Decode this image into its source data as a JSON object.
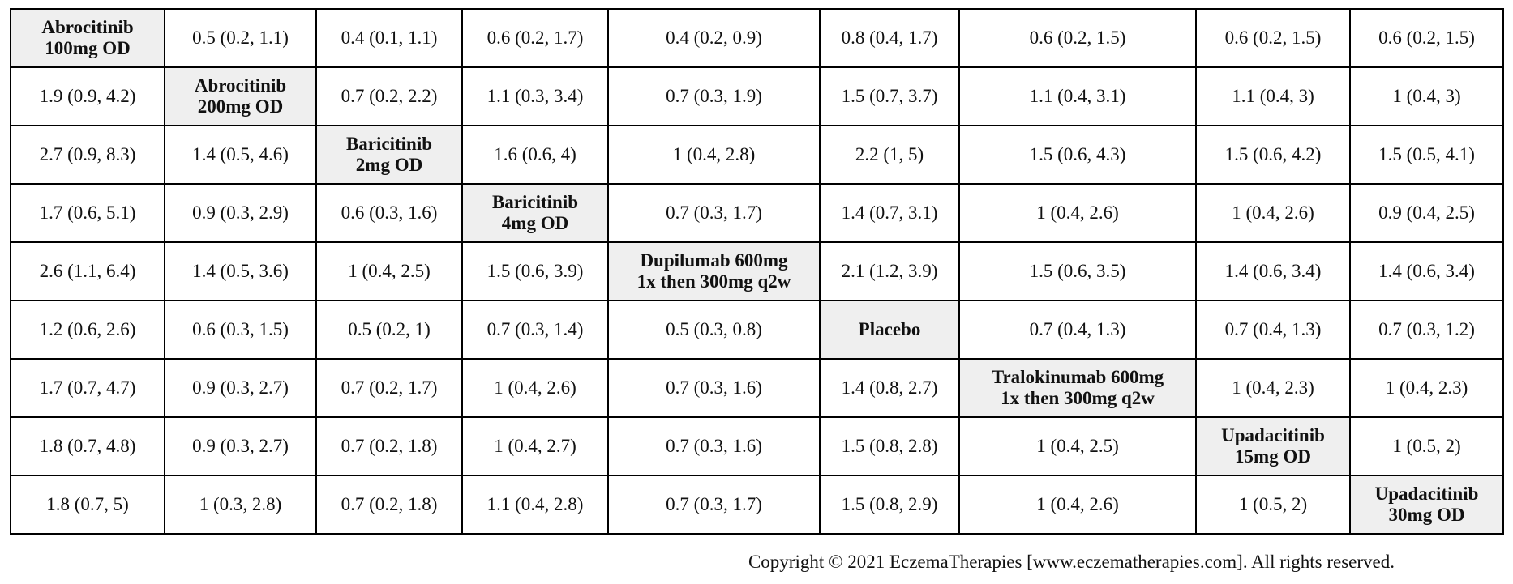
{
  "table": {
    "rows": [
      [
        [
          "Abrocitinib",
          "100mg OD"
        ],
        "0.5 (0.2, 1.1)",
        "0.4 (0.1, 1.1)",
        "0.6 (0.2, 1.7)",
        "0.4 (0.2, 0.9)",
        "0.8 (0.4, 1.7)",
        "0.6 (0.2, 1.5)",
        "0.6 (0.2, 1.5)",
        "0.6 (0.2, 1.5)"
      ],
      [
        "1.9 (0.9, 4.2)",
        [
          "Abrocitinib",
          "200mg OD"
        ],
        "0.7 (0.2, 2.2)",
        "1.1 (0.3, 3.4)",
        "0.7 (0.3, 1.9)",
        "1.5 (0.7, 3.7)",
        "1.1 (0.4, 3.1)",
        "1.1 (0.4, 3)",
        "1 (0.4, 3)"
      ],
      [
        "2.7 (0.9, 8.3)",
        "1.4 (0.5, 4.6)",
        [
          "Baricitinib",
          "2mg OD"
        ],
        "1.6 (0.6, 4)",
        "1 (0.4, 2.8)",
        "2.2 (1, 5)",
        "1.5 (0.6, 4.3)",
        "1.5 (0.6, 4.2)",
        "1.5 (0.5, 4.1)"
      ],
      [
        "1.7 (0.6, 5.1)",
        "0.9 (0.3, 2.9)",
        "0.6 (0.3, 1.6)",
        [
          "Baricitinib",
          "4mg OD"
        ],
        "0.7 (0.3, 1.7)",
        "1.4 (0.7, 3.1)",
        "1 (0.4, 2.6)",
        "1 (0.4, 2.6)",
        "0.9 (0.4, 2.5)"
      ],
      [
        "2.6 (1.1, 6.4)",
        "1.4 (0.5, 3.6)",
        "1 (0.4, 2.5)",
        "1.5 (0.6, 3.9)",
        [
          "Dupilumab 600mg",
          "1x then 300mg q2w"
        ],
        "2.1 (1.2, 3.9)",
        "1.5 (0.6, 3.5)",
        "1.4 (0.6, 3.4)",
        "1.4 (0.6, 3.4)"
      ],
      [
        "1.2 (0.6, 2.6)",
        "0.6 (0.3, 1.5)",
        "0.5 (0.2, 1)",
        "0.7 (0.3, 1.4)",
        "0.5 (0.3, 0.8)",
        [
          "Placebo"
        ],
        "0.7 (0.4, 1.3)",
        "0.7 (0.4, 1.3)",
        "0.7 (0.3, 1.2)"
      ],
      [
        "1.7 (0.7, 4.7)",
        "0.9 (0.3, 2.7)",
        "0.7 (0.2, 1.7)",
        "1 (0.4, 2.6)",
        "0.7 (0.3, 1.6)",
        "1.4 (0.8, 2.7)",
        [
          "Tralokinumab 600mg",
          "1x then 300mg q2w"
        ],
        "1 (0.4, 2.3)",
        "1 (0.4, 2.3)"
      ],
      [
        "1.8 (0.7, 4.8)",
        "0.9 (0.3, 2.7)",
        "0.7 (0.2, 1.8)",
        "1 (0.4, 2.7)",
        "0.7 (0.3, 1.6)",
        "1.5 (0.8, 2.8)",
        "1 (0.4, 2.5)",
        [
          "Upadacitinib",
          "15mg OD"
        ],
        "1 (0.5, 2)"
      ],
      [
        "1.8 (0.7, 5)",
        "1 (0.3, 2.8)",
        "0.7 (0.2, 1.8)",
        "1.1 (0.4, 2.8)",
        "0.7 (0.3, 1.7)",
        "1.5 (0.8, 2.9)",
        "1 (0.4, 2.6)",
        "1 (0.5, 2)",
        [
          "Upadacitinib",
          "30mg OD"
        ]
      ]
    ]
  },
  "footer": {
    "copyright": "Copyright © 2021 EczemaTherapies [www.eczematherapies.com]. All rights reserved."
  }
}
